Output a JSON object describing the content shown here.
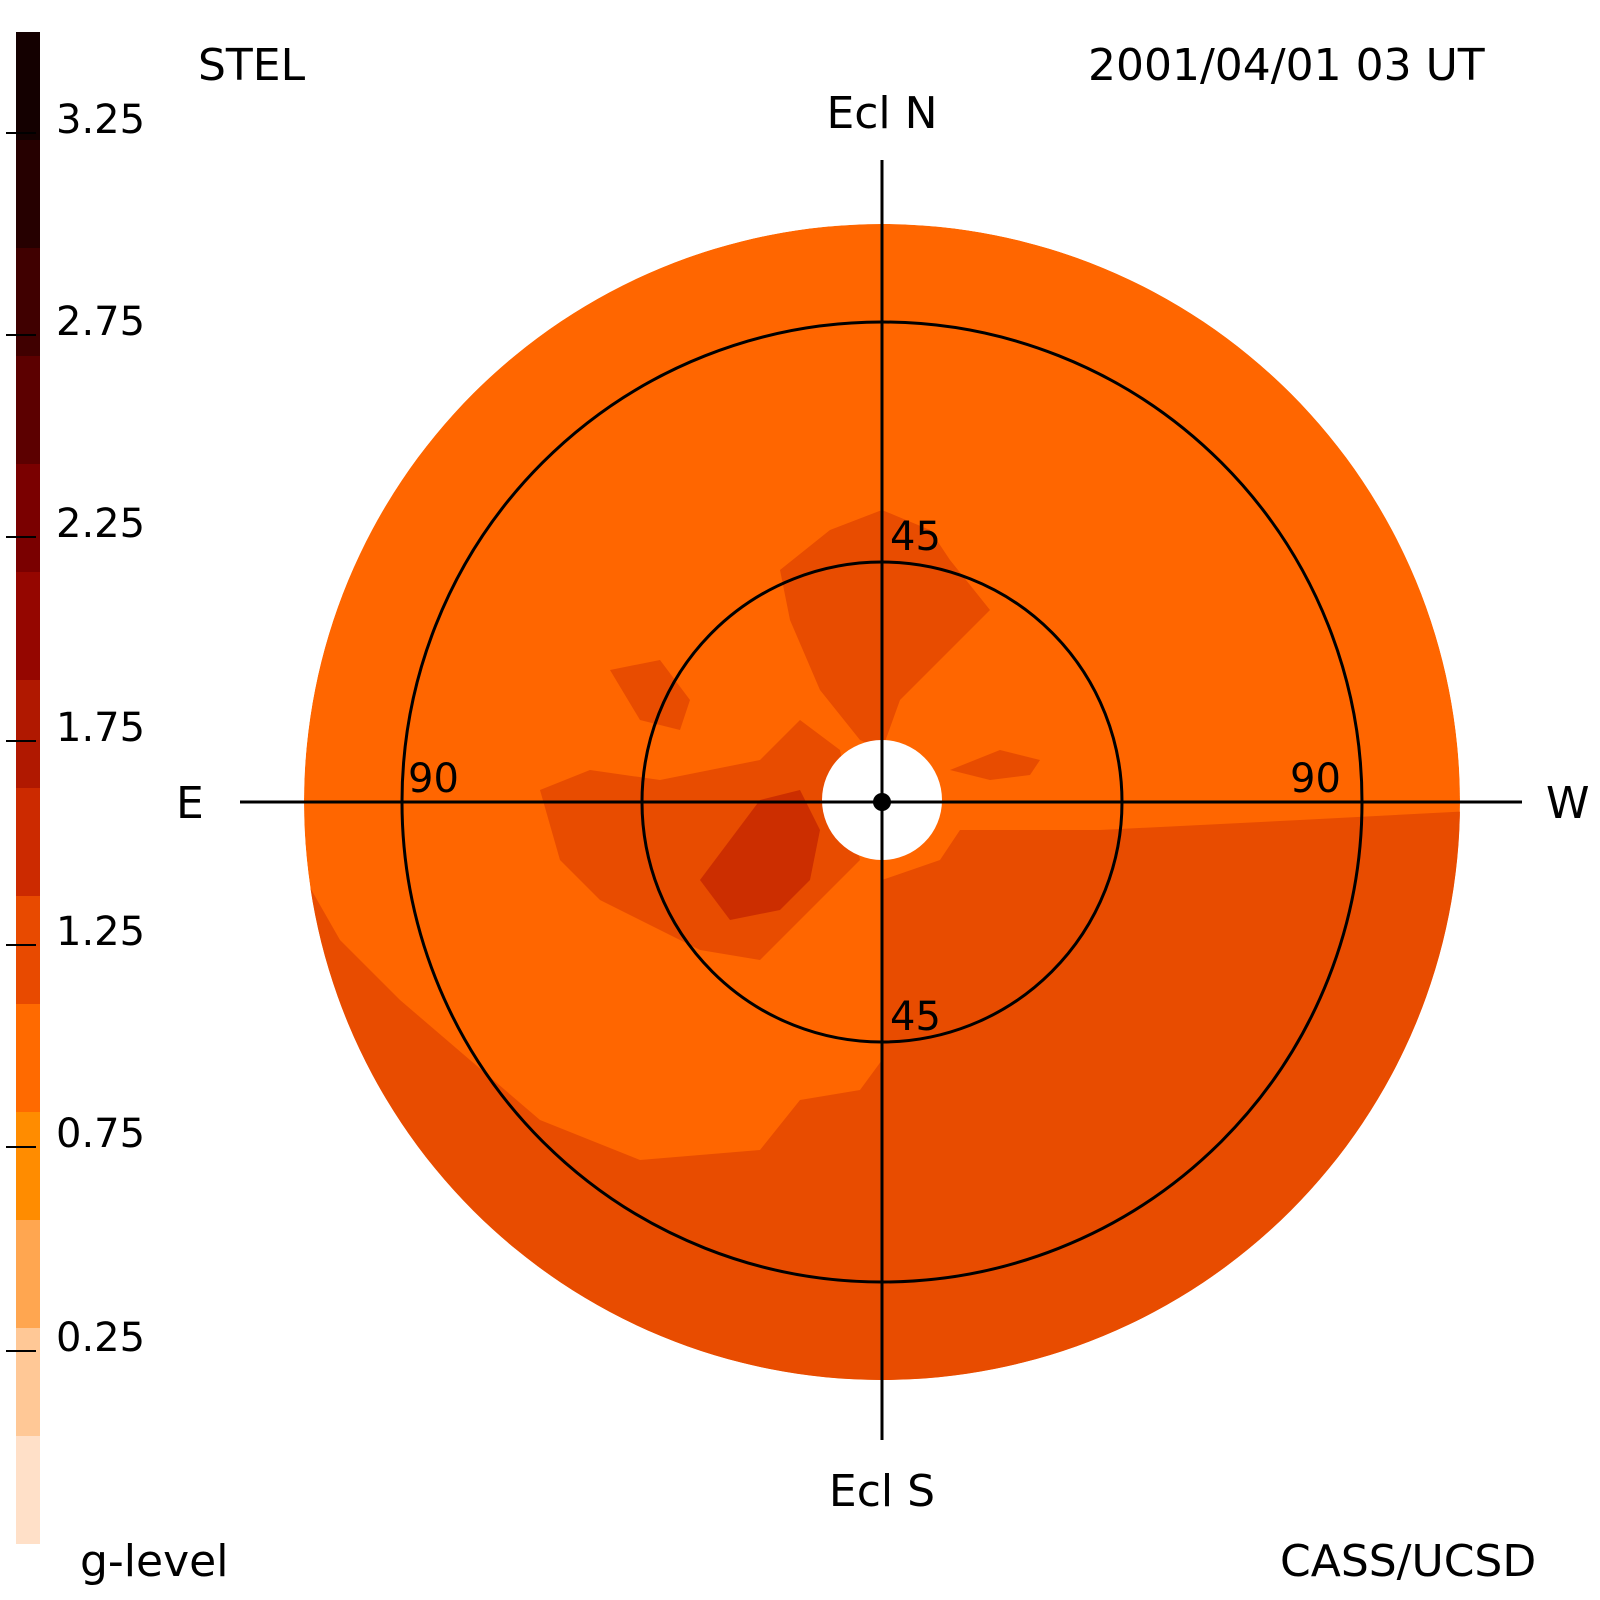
{
  "header": {
    "instrument": "STEL",
    "timestamp": "2001/04/01 03 UT"
  },
  "footer": {
    "colorbar_label": "g-level",
    "credit": "CASS/UCSD"
  },
  "compass": {
    "north": "Ecl N",
    "south": "Ecl S",
    "east": "E",
    "west": "W"
  },
  "rings": {
    "inner": "45",
    "outer": "90"
  },
  "colorbar": {
    "ticks": [
      "3.25",
      "2.75",
      "2.25",
      "1.75",
      "1.25",
      "0.75",
      "0.25"
    ],
    "levels": [
      {
        "color": "#ffe0c8"
      },
      {
        "color": "#ffc896"
      },
      {
        "color": "#ffa650"
      },
      {
        "color": "#ff8c00"
      },
      {
        "color": "#ff6a00"
      },
      {
        "color": "#e84a00"
      },
      {
        "color": "#cc2a00"
      },
      {
        "color": "#b01800"
      },
      {
        "color": "#950600"
      },
      {
        "color": "#7a0000"
      },
      {
        "color": "#5c0000"
      },
      {
        "color": "#400000"
      },
      {
        "color": "#260000"
      },
      {
        "color": "#140000"
      }
    ]
  },
  "map_colors": {
    "base": "#ff6600",
    "mid": "#e84c00",
    "high": "#cc2e00",
    "occulter": "#ffffff"
  }
}
